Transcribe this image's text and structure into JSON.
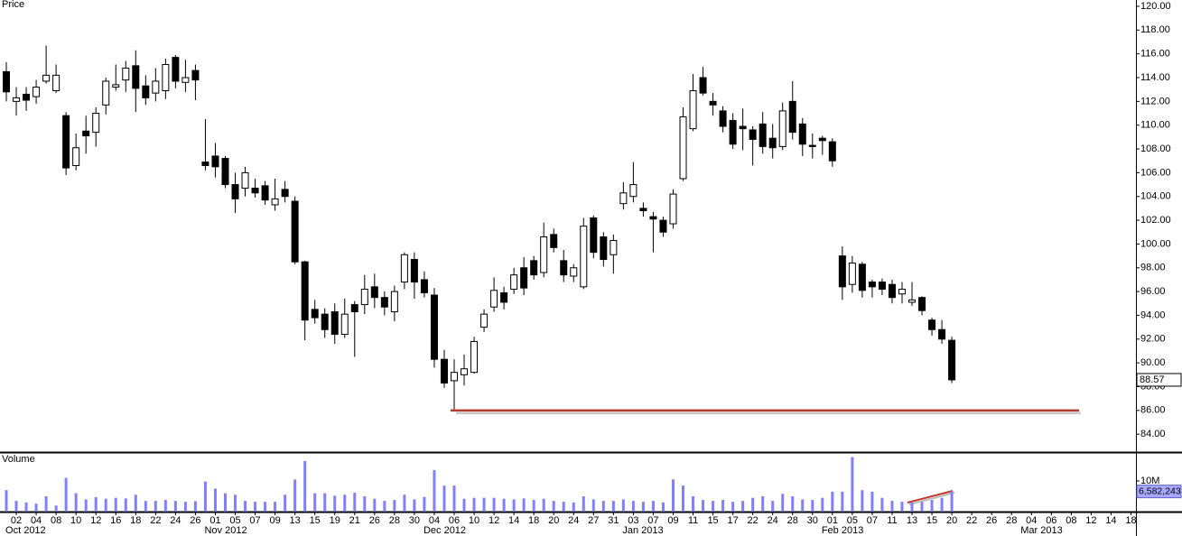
{
  "chart_data": {
    "type": "candlestick",
    "title": "Price",
    "categories": [
      null,
      "02",
      null,
      "04",
      null,
      "08",
      null,
      "10",
      null,
      "12",
      null,
      "16",
      null,
      "18",
      null,
      "22",
      null,
      "24",
      null,
      "26",
      null,
      "01",
      null,
      "05",
      null,
      "07",
      null,
      "09",
      null,
      "13",
      null,
      "15",
      null,
      "19",
      null,
      "21",
      null,
      "26",
      null,
      "28",
      null,
      "30",
      null,
      "04",
      null,
      "06",
      null,
      "10",
      null,
      "12",
      null,
      "14",
      null,
      "18",
      null,
      "20",
      null,
      "24",
      null,
      "27",
      null,
      "31",
      null,
      "03",
      null,
      "07",
      null,
      "09",
      null,
      "11",
      null,
      "15",
      null,
      "17",
      null,
      "22",
      null,
      "24",
      null,
      "28",
      null,
      "30",
      null,
      "01",
      null,
      "05",
      null,
      "07",
      null,
      "11",
      null,
      "13",
      null,
      "15",
      null,
      "20",
      null,
      "22",
      null,
      "26",
      null,
      "28",
      null,
      "04",
      null,
      "06",
      null,
      "08",
      null,
      "12",
      null,
      "14",
      null,
      "18"
    ],
    "months": [
      "Oct 2012",
      "Nov 2012",
      "Dec 2012",
      "Jan 2013",
      "Feb 2013",
      "Mar 2013"
    ],
    "open": [
      114.5,
      112.0,
      112.6,
      112.4,
      113.7,
      112.9,
      110.8,
      106.6,
      109.5,
      109.4,
      111.7,
      113.2,
      113.8,
      115.0,
      113.3,
      112.7,
      112.9,
      115.7,
      113.6,
      114.6,
      106.9,
      107.4,
      107.2,
      105.0,
      104.7,
      104.7,
      104.9,
      103.3,
      104.6,
      103.6,
      98.5,
      94.5,
      94.1,
      94.3,
      92.4,
      94.9,
      94.9,
      96.4,
      95.5,
      94.3,
      96.8,
      98.7,
      97.0,
      95.7,
      90.3,
      88.5,
      89.0,
      89.2,
      93.0,
      94.7,
      95.9,
      96.2,
      98.0,
      98.6,
      97.6,
      100.8,
      98.6,
      97.3,
      96.4,
      102.2,
      100.6,
      99.1,
      103.4,
      104.0,
      103.0,
      102.3,
      102.0,
      101.7,
      105.5,
      109.7,
      114.0,
      112.0,
      111.2,
      110.4,
      109.9,
      109.6,
      110.1,
      108.9,
      108.2,
      112.0,
      110.1,
      108.3,
      108.9,
      108.6,
      99.0,
      96.6,
      98.3,
      96.8,
      96.8,
      96.6,
      95.8,
      95.1,
      95.5,
      93.6,
      92.8,
      91.9,
      null,
      null,
      null,
      null,
      null,
      null,
      null,
      null,
      null,
      null,
      null,
      null,
      null,
      null,
      null,
      null,
      null,
      null
    ],
    "high": [
      115.3,
      113.2,
      113.2,
      113.8,
      116.7,
      115.1,
      111.1,
      109.3,
      110.8,
      111.5,
      114.0,
      115.1,
      115.4,
      116.3,
      114.2,
      114.8,
      115.6,
      115.9,
      115.5,
      115.1,
      110.5,
      108.5,
      107.4,
      106.0,
      106.5,
      105.5,
      105.3,
      105.5,
      105.3,
      104.0,
      98.6,
      95.3,
      94.6,
      95.0,
      95.4,
      95.2,
      97.4,
      97.5,
      96.0,
      96.5,
      99.3,
      99.3,
      97.7,
      96.3,
      91.1,
      90.3,
      90.7,
      92.2,
      94.5,
      97.2,
      96.4,
      98.0,
      98.9,
      99.0,
      101.8,
      101.3,
      99.5,
      98.3,
      102.2,
      102.4,
      101.0,
      100.8,
      105.2,
      106.9,
      103.5,
      102.7,
      102.3,
      104.6,
      111.5,
      114.3,
      114.9,
      112.7,
      111.6,
      111.0,
      111.4,
      109.9,
      111.1,
      110.1,
      111.9,
      113.7,
      110.6,
      109.3,
      109.1,
      108.9,
      99.8,
      99.0,
      98.5,
      97.0,
      97.1,
      97.0,
      96.8,
      96.8,
      95.6,
      93.8,
      93.6,
      92.2,
      null,
      null,
      null,
      null,
      null,
      null,
      null,
      null,
      null,
      null,
      null,
      null,
      null,
      null,
      null,
      null,
      null,
      null
    ],
    "low": [
      112.0,
      110.8,
      111.2,
      111.8,
      113.5,
      112.7,
      105.8,
      106.2,
      107.6,
      108.2,
      110.9,
      112.9,
      112.8,
      111.1,
      111.7,
      112.0,
      112.2,
      113.1,
      112.8,
      112.1,
      106.2,
      105.6,
      104.7,
      102.6,
      104.0,
      103.9,
      103.3,
      102.8,
      103.5,
      98.3,
      91.9,
      93.3,
      92.1,
      91.6,
      92.1,
      90.5,
      94.1,
      94.6,
      94.0,
      93.5,
      96.2,
      95.4,
      95.5,
      89.6,
      87.9,
      86.1,
      88.1,
      89.1,
      92.6,
      94.3,
      94.5,
      95.8,
      95.7,
      97.0,
      97.2,
      99.3,
      96.8,
      96.8,
      96.2,
      98.8,
      98.1,
      97.5,
      102.9,
      103.5,
      102.3,
      99.3,
      100.6,
      101.3,
      105.3,
      109.5,
      112.5,
      110.8,
      109.4,
      108.0,
      107.9,
      106.6,
      107.6,
      107.2,
      107.9,
      108.8,
      107.4,
      107.2,
      107.5,
      106.5,
      95.3,
      95.9,
      95.5,
      95.5,
      95.7,
      95.0,
      95.0,
      94.8,
      94.0,
      92.3,
      91.6,
      88.3,
      null,
      null,
      null,
      null,
      null,
      null,
      null,
      null,
      null,
      null,
      null,
      null,
      null,
      null,
      null,
      null,
      null,
      null
    ],
    "close": [
      112.8,
      112.3,
      112.1,
      113.2,
      114.2,
      114.2,
      106.4,
      108.1,
      109.1,
      111.0,
      113.7,
      113.4,
      114.8,
      113.1,
      112.3,
      113.7,
      115.1,
      113.7,
      114.0,
      113.8,
      106.6,
      106.5,
      105.0,
      103.8,
      106.0,
      104.3,
      103.7,
      103.8,
      104.0,
      98.5,
      93.6,
      93.8,
      92.8,
      92.4,
      94.1,
      94.3,
      96.2,
      95.5,
      94.7,
      96.0,
      99.1,
      96.8,
      95.9,
      90.3,
      88.3,
      89.2,
      89.5,
      91.8,
      94.1,
      96.1,
      95.1,
      97.4,
      96.3,
      97.4,
      100.6,
      99.7,
      97.4,
      98.0,
      101.5,
      99.3,
      98.7,
      100.3,
      104.3,
      105.0,
      102.8,
      102.1,
      101.0,
      104.2,
      110.7,
      112.9,
      112.7,
      111.7,
      109.9,
      108.4,
      109.7,
      108.8,
      108.2,
      108.1,
      111.2,
      109.4,
      108.4,
      108.2,
      108.7,
      107.0,
      96.4,
      98.4,
      96.1,
      96.4,
      96.2,
      95.5,
      96.2,
      95.3,
      94.4,
      92.8,
      92.0,
      88.57,
      null,
      null,
      null,
      null,
      null,
      null,
      null,
      null,
      null,
      null,
      null,
      null,
      null,
      null,
      null,
      null,
      null,
      null
    ],
    "ylim": [
      82.57,
      120.53
    ],
    "yticks": [
      {
        "value": 84,
        "label": "84.00"
      },
      {
        "value": 86,
        "label": "86.00"
      },
      {
        "value": 88,
        "label": "88.00"
      },
      {
        "value": 90,
        "label": "90.00"
      },
      {
        "value": 92,
        "label": "92.00"
      },
      {
        "value": 94,
        "label": "94.00"
      },
      {
        "value": 96,
        "label": "96.00"
      },
      {
        "value": 98,
        "label": "98.00"
      },
      {
        "value": 100,
        "label": "100.00"
      },
      {
        "value": 102,
        "label": "102.00"
      },
      {
        "value": 104,
        "label": "104.00"
      },
      {
        "value": 106,
        "label": "106.00"
      },
      {
        "value": 108,
        "label": "108.00"
      },
      {
        "value": 110,
        "label": "110.00"
      },
      {
        "value": 112,
        "label": "112.00"
      },
      {
        "value": 114,
        "label": "114.00"
      },
      {
        "value": 116,
        "label": "116.00"
      },
      {
        "value": 118,
        "label": "118.00"
      },
      {
        "value": 120,
        "label": "120.00"
      }
    ],
    "up_color": "#ffffff",
    "down_color": "#000000",
    "support_line": {
      "value": 86,
      "color": "#b5392b"
    },
    "volume": {
      "title": "Volume",
      "color": "#8080ff",
      "values": [
        7000000,
        3500000,
        3000000,
        2600000,
        5000000,
        2000000,
        11000000,
        6000000,
        4000000,
        4700000,
        4200000,
        4500000,
        4300000,
        5500000,
        3500000,
        3500000,
        3800000,
        3500000,
        3200000,
        3400000,
        9800000,
        7500000,
        6000000,
        5500000,
        3500000,
        3200000,
        3200000,
        3200000,
        5500000,
        10500000,
        16500000,
        6000000,
        6000000,
        5200000,
        5500000,
        6200000,
        5000000,
        4200000,
        3500000,
        3800000,
        5500000,
        4000000,
        4800000,
        13500000,
        8500000,
        8500000,
        4200000,
        4500000,
        4500000,
        4500000,
        4200000,
        4000000,
        4300000,
        3800000,
        4200000,
        3500000,
        3200000,
        3000000,
        5000000,
        4000000,
        3500000,
        3500000,
        4000000,
        3500000,
        3200000,
        3500000,
        3000000,
        10500000,
        8500000,
        5000000,
        3800000,
        3500000,
        3800000,
        3200000,
        3500000,
        4500000,
        5000000,
        3500000,
        5800000,
        5000000,
        4000000,
        3800000,
        4500000,
        6500000,
        6500000,
        17800000,
        7000000,
        6500000,
        4500000,
        3500000,
        3200000,
        3000000,
        3200000,
        3800000,
        4500000,
        6582243,
        null,
        null,
        null,
        null,
        null,
        null,
        null,
        null,
        null,
        null,
        null,
        null,
        null,
        null,
        null,
        null,
        null,
        null
      ],
      "value_labels": [
        null,
        null,
        null,
        null,
        null,
        null,
        null,
        null,
        null,
        null,
        null,
        null,
        null,
        null,
        null,
        null,
        null,
        null,
        null,
        null,
        null,
        null,
        null,
        null,
        null,
        null,
        null,
        null,
        null,
        null,
        null,
        null,
        null,
        null,
        null,
        null,
        null,
        null,
        null,
        null,
        null,
        null,
        null,
        null,
        null,
        null,
        null,
        null,
        null,
        null,
        null,
        null,
        null,
        null,
        null,
        null,
        null,
        null,
        null,
        null,
        null,
        null,
        null,
        null,
        null,
        null,
        null,
        null,
        null,
        null,
        null,
        null,
        null,
        null,
        null,
        null,
        null,
        null,
        null,
        null,
        null,
        null,
        null,
        null,
        null,
        null,
        null,
        null,
        null,
        null,
        null,
        null,
        null,
        null,
        null,
        "6,582,243",
        null,
        null,
        null,
        null,
        null,
        null,
        null,
        null,
        null,
        null,
        null,
        null,
        null,
        null,
        null,
        null,
        null,
        null
      ],
      "ylim": [
        0,
        18820000
      ],
      "yticks": [
        {
          "value": 10000000,
          "label": "10M"
        }
      ]
    }
  }
}
